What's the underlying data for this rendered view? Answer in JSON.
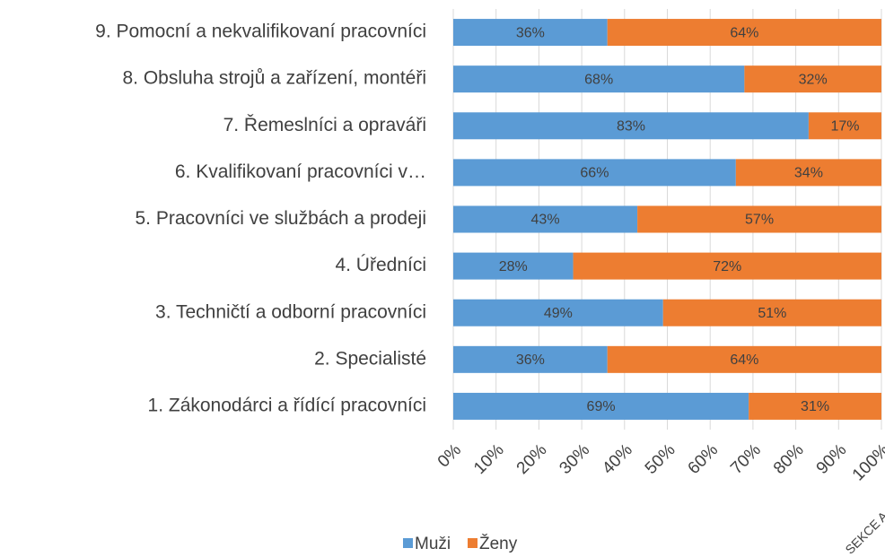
{
  "chart_data": {
    "type": "stacked_bar_horizontal",
    "categories": [
      "1. Zákonodárci a řídící pracovníci",
      "2. Specialisté",
      "3. Techničtí a odborní pracovníci",
      "4. Úředníci",
      "5. Pracovníci ve službách a prodeji",
      "6. Kvalifikovaní pracovníci v…",
      "7. Řemeslníci a opraváři",
      "8. Obsluha strojů a zařízení, montéři",
      "9. Pomocní a nekvalifikovaní pracovníci"
    ],
    "series": [
      {
        "name": "Muži",
        "color": "#5b9bd5",
        "values": [
          69,
          36,
          49,
          28,
          43,
          66,
          83,
          68,
          36
        ],
        "value_labels": [
          "69%",
          "36%",
          "49%",
          "28%",
          "43%",
          "66%",
          "83%",
          "68%",
          "36%"
        ]
      },
      {
        "name": "Ženy",
        "color": "#ed7d31",
        "values": [
          31,
          64,
          51,
          72,
          57,
          34,
          17,
          32,
          64
        ],
        "value_labels": [
          "31%",
          "64%",
          "51%",
          "72%",
          "57%",
          "34%",
          "17%",
          "32%",
          "64%"
        ]
      }
    ],
    "x_label": "SEKCE A",
    "xlim": [
      0,
      100
    ],
    "xticks": [
      {
        "value": 0,
        "label": "0%"
      },
      {
        "value": 10,
        "label": "10%"
      },
      {
        "value": 20,
        "label": "20%"
      },
      {
        "value": 30,
        "label": "30%"
      },
      {
        "value": 40,
        "label": "40%"
      },
      {
        "value": 50,
        "label": "50%"
      },
      {
        "value": 60,
        "label": "60%"
      },
      {
        "value": 70,
        "label": "70%"
      },
      {
        "value": 80,
        "label": "80%"
      },
      {
        "value": 90,
        "label": "90%"
      },
      {
        "value": 100,
        "label": "100%"
      }
    ],
    "grid": true,
    "legend": "bottom"
  }
}
